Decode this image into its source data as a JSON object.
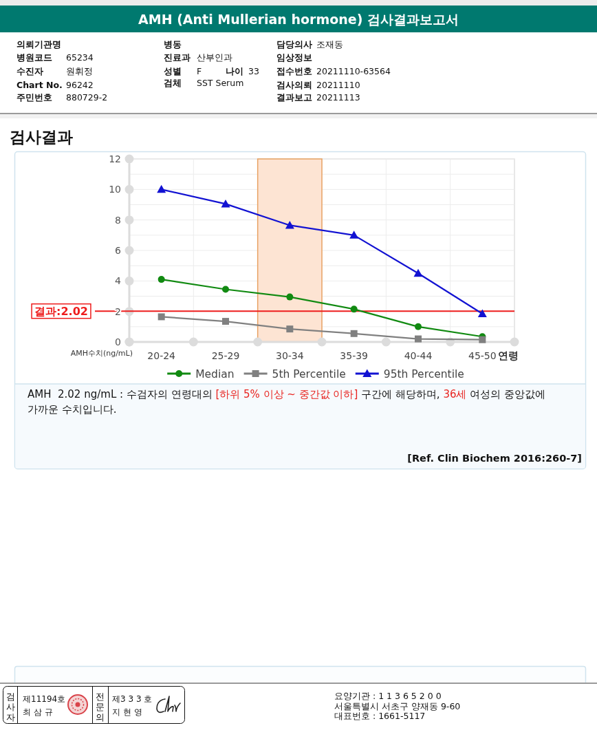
{
  "chart_data": {
    "type": "line",
    "title": "AMH (Anti Mullerian hormone) 검사결과보고서",
    "subtitle": "검사결과",
    "xlabel": "연령",
    "ylabel": "AMH수치(ng/mL)",
    "categories": [
      "20-24",
      "25-29",
      "30-34",
      "35-39",
      "40-44",
      "45-50"
    ],
    "series": [
      {
        "name": "Median",
        "color": "#118a11",
        "marker": "circle",
        "values": [
          4.1,
          3.45,
          2.95,
          2.15,
          1.0,
          0.35
        ]
      },
      {
        "name": "5th Percentile",
        "color": "#808080",
        "marker": "square",
        "values": [
          1.65,
          1.35,
          0.85,
          0.55,
          0.2,
          0.15
        ]
      },
      {
        "name": "95th Percentile",
        "color": "#1212d2",
        "marker": "triangle",
        "values": [
          10.0,
          9.05,
          7.65,
          7.0,
          4.5,
          1.85
        ]
      }
    ],
    "ylim": [
      0,
      12
    ],
    "yticks": [
      0,
      {
        "value": 1,
        "label": null
      },
      2,
      {
        "value": 3,
        "label": null
      },
      4,
      {
        "value": 5,
        "label": null
      },
      6,
      {
        "value": 7,
        "label": null
      },
      8,
      {
        "value": 9,
        "label": null
      },
      10,
      {
        "value": 11,
        "label": null
      },
      12
    ],
    "grid": true,
    "legend": "bottom",
    "ref_lines": [
      {
        "axis": "y",
        "value": 2.02,
        "label": "결과:2.02",
        "color": "#ee1c1c"
      }
    ],
    "bands": [
      {
        "axis": "x",
        "from": "30-34",
        "to": "30-34",
        "color": "#fde4d3"
      }
    ],
    "annotations": [
      "의뢰기관명",
      "병원코드",
      "65234",
      "수진자",
      "원휘정",
      "Chart No.",
      "96242",
      "주민번호",
      "880729-2",
      "병동",
      "진료과",
      "산부인과",
      "성별",
      "F",
      "나이",
      "33",
      "검체",
      "SST Serum",
      "담당의사",
      "조재동",
      "임상정보",
      "접수번호",
      "20211110-63564",
      "검사의뢰",
      "20211110",
      "결과보고",
      "20211113",
      "AMH  2.02 ng/mL : 수검자의 연령대의 ",
      "[하위 5% 이상 ~ 중간값 이하]",
      " 구간에 해당하며, ",
      "36세",
      " 여성의 중앙값에",
      "가까운 수치입니다.",
      "[Ref. Clin Biochem 2016:260-7]",
      "검사자",
      "제11194호",
      "최 삼 규",
      "전문의",
      "제3 3 3 호",
      "지 현 영",
      "요양기관 : 1 1 3 6 5 2 0 0",
      "서울특별시 서초구 양재동 9-60",
      "대표번호 : 1661-5117"
    ]
  }
}
